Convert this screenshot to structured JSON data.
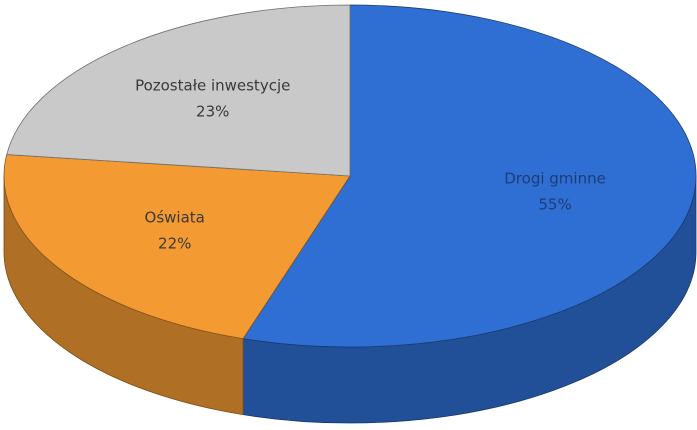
{
  "chart_data": {
    "type": "pie",
    "categories": [
      "Drogi gminne",
      "Oświata",
      "Pozostałe inwestycje"
    ],
    "values": [
      55,
      22,
      23
    ],
    "value_labels": [
      "55%",
      "22%",
      "23%"
    ],
    "colors": [
      "#2f6fd3",
      "#f39a33",
      "#c9c9c9"
    ],
    "start_angle": 0,
    "direction": "clockwise"
  }
}
